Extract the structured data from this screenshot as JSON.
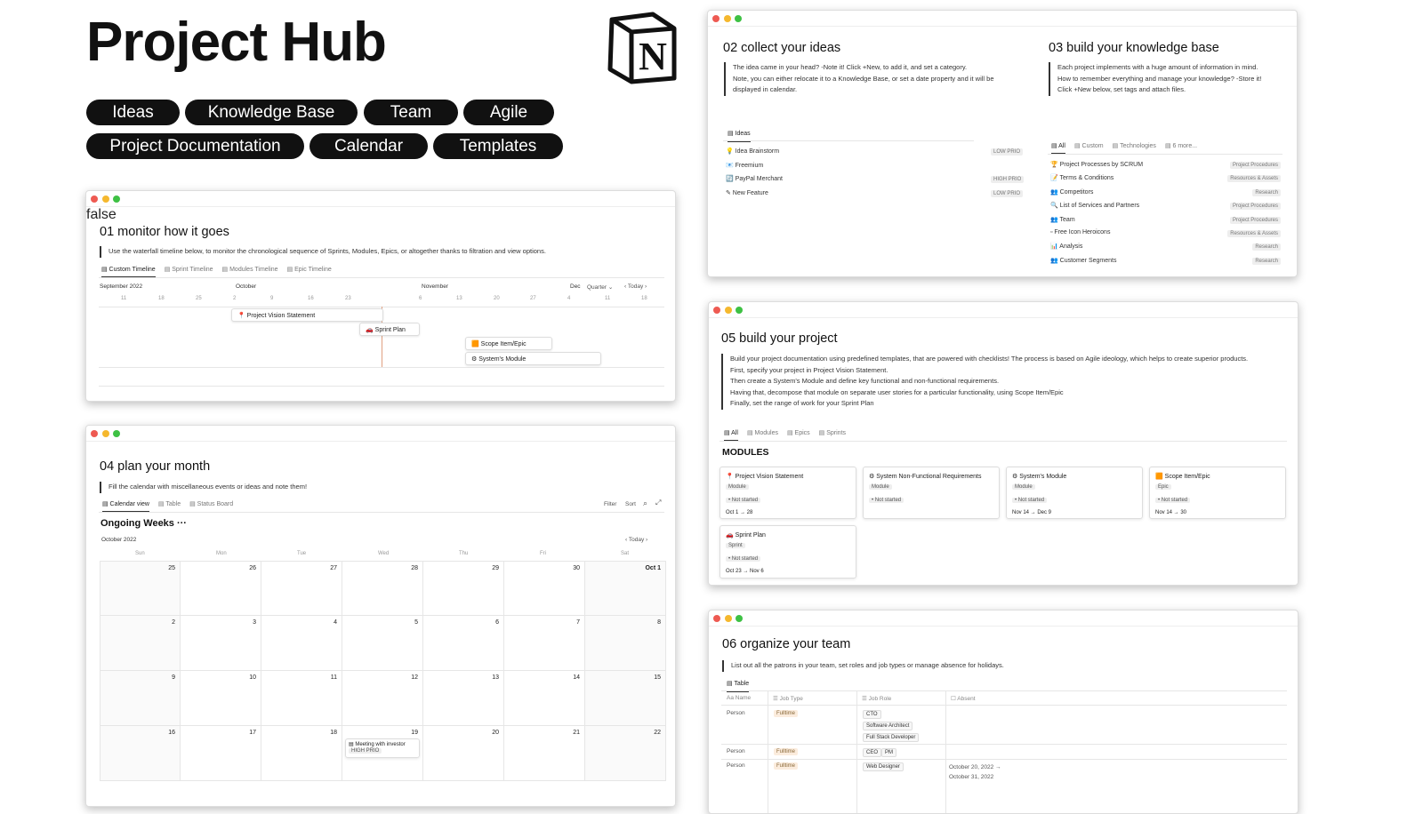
{
  "header": {
    "title": "Project Hub",
    "logo_text": "N"
  },
  "nav": [
    "Ideas",
    "Knowledge Base",
    "Team",
    "Agile",
    "Project Documentation",
    "Calendar",
    "Templates"
  ],
  "colors": {
    "close": "#ee5a52",
    "minimize": "#f5b82e",
    "maximize": "#3ec144",
    "pill": "#111111"
  },
  "w01": {
    "heading": "01 monitor how it goes",
    "desc": "Use the waterfall timeline below, to monitor the chronological sequence of Sprints, Modules, Epics, or altogether thanks to filtration and view options.",
    "tabs": [
      "Custom Timeline",
      "Sprint Timeline",
      "Modules Timeline",
      "Epic Timeline"
    ],
    "months": [
      "September 2022",
      "October",
      "November",
      "Dec"
    ],
    "controls": {
      "range": "Quarter",
      "today": "Today"
    },
    "days": [
      "11",
      "18",
      "25",
      "2",
      "9",
      "16",
      "23",
      "26",
      "6",
      "13",
      "20",
      "27",
      "4",
      "11",
      "18"
    ],
    "items": [
      "Project Vision Statement",
      "Sprint Plan",
      "Scope Item/Epic",
      "System's Module"
    ]
  },
  "w02": {
    "heading": "02 collect your ideas",
    "desc": [
      "The idea came in your head? -Note it! Click +New, to add it, and set a category.",
      "Note, you can either relocate it to a Knowledge Base, or set a date property and it will be displayed in calendar."
    ],
    "tab": "Ideas",
    "items": [
      {
        "name": "Idea Brainstorm",
        "prio": "LOW PRIO"
      },
      {
        "name": "Freemium",
        "prio": ""
      },
      {
        "name": "PayPal Merchant",
        "prio": "HIGH PRIO"
      },
      {
        "name": "New Feature",
        "prio": "LOW PRIO"
      }
    ]
  },
  "w03": {
    "heading": "03 build your knowledge base",
    "desc": [
      "Each project implements with a huge amount of information in mind.",
      "How to remember everything and manage your knowledge? -Store it!",
      "Click +New below, set tags and attach files."
    ],
    "tabs": [
      "All",
      "Custom",
      "Technologies",
      "6 more..."
    ],
    "items": [
      {
        "name": "Project Processes by SCRUM",
        "tag": "Project Procedures"
      },
      {
        "name": "Terms & Conditions",
        "tag": "Resources & Assets"
      },
      {
        "name": "Competitors",
        "tag": "Research"
      },
      {
        "name": "List of Services and Partners",
        "tag": "Project Procedures"
      },
      {
        "name": "Team",
        "tag": "Project Procedures"
      },
      {
        "name": "Free Icon Heroicons",
        "tag": "Resources & Assets"
      },
      {
        "name": "Analysis",
        "tag": "Research"
      },
      {
        "name": "Customer Segments",
        "tag": "Research"
      }
    ]
  },
  "w04": {
    "heading": "04 plan your month",
    "desc": "Fill the calendar with miscellaneous events or ideas and note them!",
    "tabs": [
      "Calendar view",
      "Table",
      "Status Board"
    ],
    "actions": [
      "Filter",
      "Sort"
    ],
    "group": "Ongoing Weeks",
    "month": "October 2022",
    "today": "Today",
    "weekdays": [
      "Sun",
      "Mon",
      "Tue",
      "Wed",
      "Thu",
      "Fri",
      "Sat"
    ],
    "weeks": [
      [
        "25",
        "26",
        "27",
        "28",
        "29",
        "30",
        "Oct 1"
      ],
      [
        "2",
        "3",
        "4",
        "5",
        "6",
        "7",
        "8"
      ],
      [
        "9",
        "10",
        "11",
        "12",
        "13",
        "14",
        "15"
      ],
      [
        "16",
        "17",
        "18",
        "19",
        "20",
        "21",
        "22"
      ]
    ],
    "event": {
      "title": "Meeting with investor",
      "prio": "HIGH PRIO"
    }
  },
  "w05": {
    "heading": "05 build your project",
    "desc": [
      "Build your project documentation using predefined templates, that are powered with checklists! The process is based on Agile ideology, which helps to create superior products.",
      "First, specify your project in Project Vision Statement.",
      "Then create a System's Module and define key functional and non-functional requirements.",
      "Having that, decompose that module on separate user stories for a particular functionality, using Scope Item/Epic",
      "Finally, set the range of work for your Sprint Plan"
    ],
    "tabs": [
      "All",
      "Modules",
      "Epics",
      "Sprints"
    ],
    "section": "MODULES",
    "cards": [
      {
        "title": "Project Vision Statement",
        "type": "Module",
        "status": "Not started",
        "dates": "Oct 1 → 28"
      },
      {
        "title": "System Non-Functional Requirements",
        "type": "Module",
        "status": "Not started",
        "dates": ""
      },
      {
        "title": "System's Module",
        "type": "Module",
        "status": "Not started",
        "dates": "Nov 14 → Dec 9"
      },
      {
        "title": "Scope Item/Epic",
        "type": "Epic",
        "status": "Not started",
        "dates": "Nov 14 → 30"
      },
      {
        "title": "Sprint Plan",
        "type": "Sprint",
        "status": "Not started",
        "dates": "Oct 23 → Nov 6"
      }
    ]
  },
  "w06": {
    "heading": "06 organize your team",
    "desc": "List out all the patrons in your team, set roles and job types or manage absence for holidays.",
    "tab": "Table",
    "columns": [
      "Name",
      "Job Type",
      "Job Role",
      "Absent"
    ],
    "rows": [
      {
        "name": "Person",
        "type": "Fulltime",
        "roles": [
          "CTO",
          "Software Architect",
          "Full Stack Developer"
        ],
        "absent": ""
      },
      {
        "name": "Person",
        "type": "Fulltime",
        "roles": [
          "CEO",
          "PM"
        ],
        "absent": ""
      },
      {
        "name": "Person",
        "type": "Fulltime",
        "roles": [
          "Web Designer"
        ],
        "absent": "October 20, 2022 → October 31, 2022"
      }
    ]
  }
}
